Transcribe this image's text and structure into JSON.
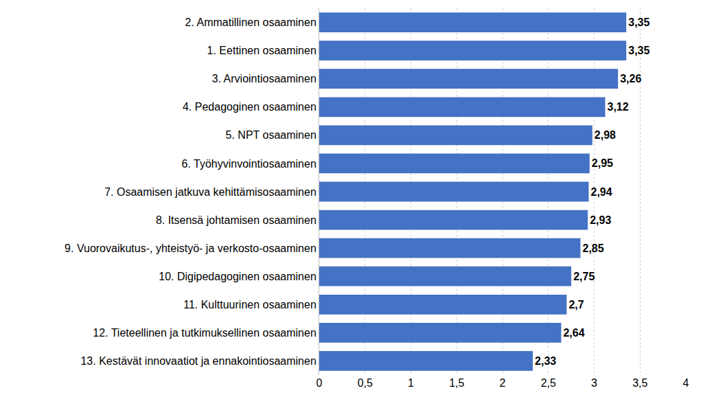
{
  "chart_data": {
    "type": "bar",
    "orientation": "horizontal",
    "categories": [
      "2. Ammatillinen osaaminen",
      "1. Eettinen osaaminen",
      "3. Arviointiosaaminen",
      "4. Pedagoginen osaaminen",
      "5. NPT osaaminen",
      "6. Työhyvinvointiosaaminen",
      "7. Osaamisen jatkuva kehittämisosaaminen",
      "8. Itsensä johtamisen osaaminen",
      "9. Vuorovaikutus-, yhteistyö- ja verkosto-osaaminen",
      "10. Digipedagoginen osaaminen",
      "11. Kulttuurinen osaaminen",
      "12. Tieteellinen ja tutkimuksellinen osaaminen",
      "13. Kestävät innovaatiot ja ennakointiosaaminen"
    ],
    "values": [
      3.35,
      3.35,
      3.26,
      3.12,
      2.98,
      2.95,
      2.94,
      2.93,
      2.85,
      2.75,
      2.7,
      2.64,
      2.33
    ],
    "value_labels": [
      "3,35",
      "3,35",
      "3,26",
      "3,12",
      "2,98",
      "2,95",
      "2,94",
      "2,93",
      "2,85",
      "2,75",
      "2,7",
      "2,64",
      "2,33"
    ],
    "data_labels": true,
    "color": "#4472c4",
    "xlim": [
      0,
      4
    ],
    "xticks": [
      0,
      {
        "value": 0.5,
        "label": "0,5"
      },
      1,
      {
        "value": 1.5,
        "label": "1,5"
      },
      2,
      {
        "value": 2.5,
        "label": "2,5"
      },
      3,
      {
        "value": 3.5,
        "label": "3,5"
      },
      4
    ],
    "grid": true
  }
}
